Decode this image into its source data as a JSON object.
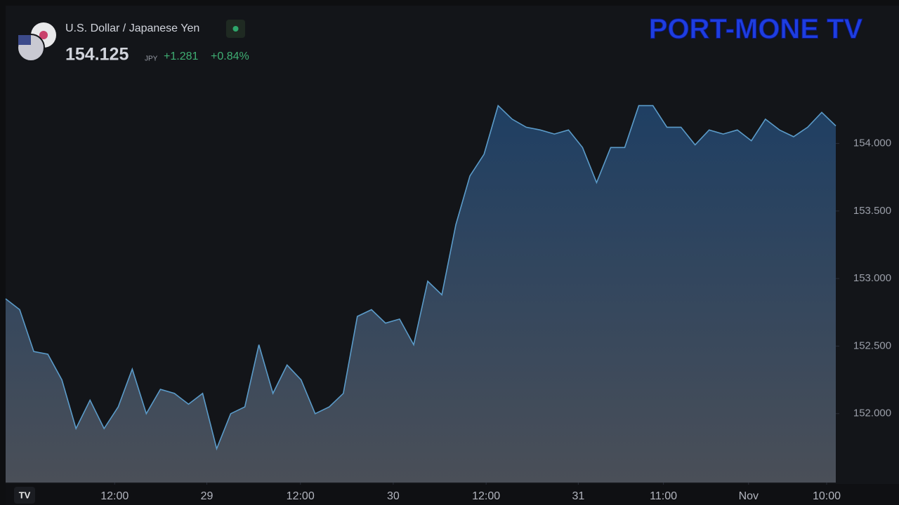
{
  "header": {
    "symbol": "U.S. Dollar / Japanese Yen",
    "price": "154.125",
    "currency": "JPY",
    "change": "+1.281",
    "change_percent": "+0.84%"
  },
  "logo": "PORT-MONE TV",
  "chart_data": {
    "type": "area",
    "color": "#5b9bc9",
    "values": [
      152.85,
      152.77,
      152.46,
      152.44,
      152.25,
      151.89,
      152.1,
      151.89,
      152.05,
      152.33,
      152.0,
      152.18,
      152.15,
      152.07,
      152.15,
      151.74,
      152.0,
      152.05,
      152.51,
      152.15,
      152.36,
      152.25,
      152.0,
      152.05,
      152.15,
      152.72,
      152.77,
      152.67,
      152.7,
      152.51,
      152.98,
      152.88,
      153.4,
      153.76,
      153.92,
      154.28,
      154.18,
      154.12,
      154.1,
      154.07,
      154.1,
      153.97,
      153.71,
      153.97,
      153.97,
      154.28,
      154.28,
      154.12,
      154.12,
      153.99,
      154.1,
      154.07,
      154.1,
      154.02,
      154.18,
      154.1,
      154.05,
      154.12,
      154.23,
      154.13
    ],
    "ylim": [
      151.49,
      155.01
    ],
    "yticks": [
      {
        "value": 152,
        "label": "152.000"
      },
      {
        "value": 152.5,
        "label": "152.500"
      },
      {
        "value": 153,
        "label": "153.000"
      },
      {
        "value": 153.5,
        "label": "153.500"
      },
      {
        "value": 154,
        "label": "154.000"
      }
    ],
    "xticks": [
      {
        "value": 7.75,
        "label": "12:00"
      },
      {
        "value": 14.3,
        "label": "29"
      },
      {
        "value": 20.95,
        "label": "12:00"
      },
      {
        "value": 27.55,
        "label": "30"
      },
      {
        "value": 34.15,
        "label": "12:00"
      },
      {
        "value": 40.7,
        "label": "31"
      },
      {
        "value": 46.75,
        "label": "11:00"
      },
      {
        "value": 52.8,
        "label": "Nov"
      },
      {
        "value": 58.35,
        "label": "10:00"
      }
    ]
  }
}
